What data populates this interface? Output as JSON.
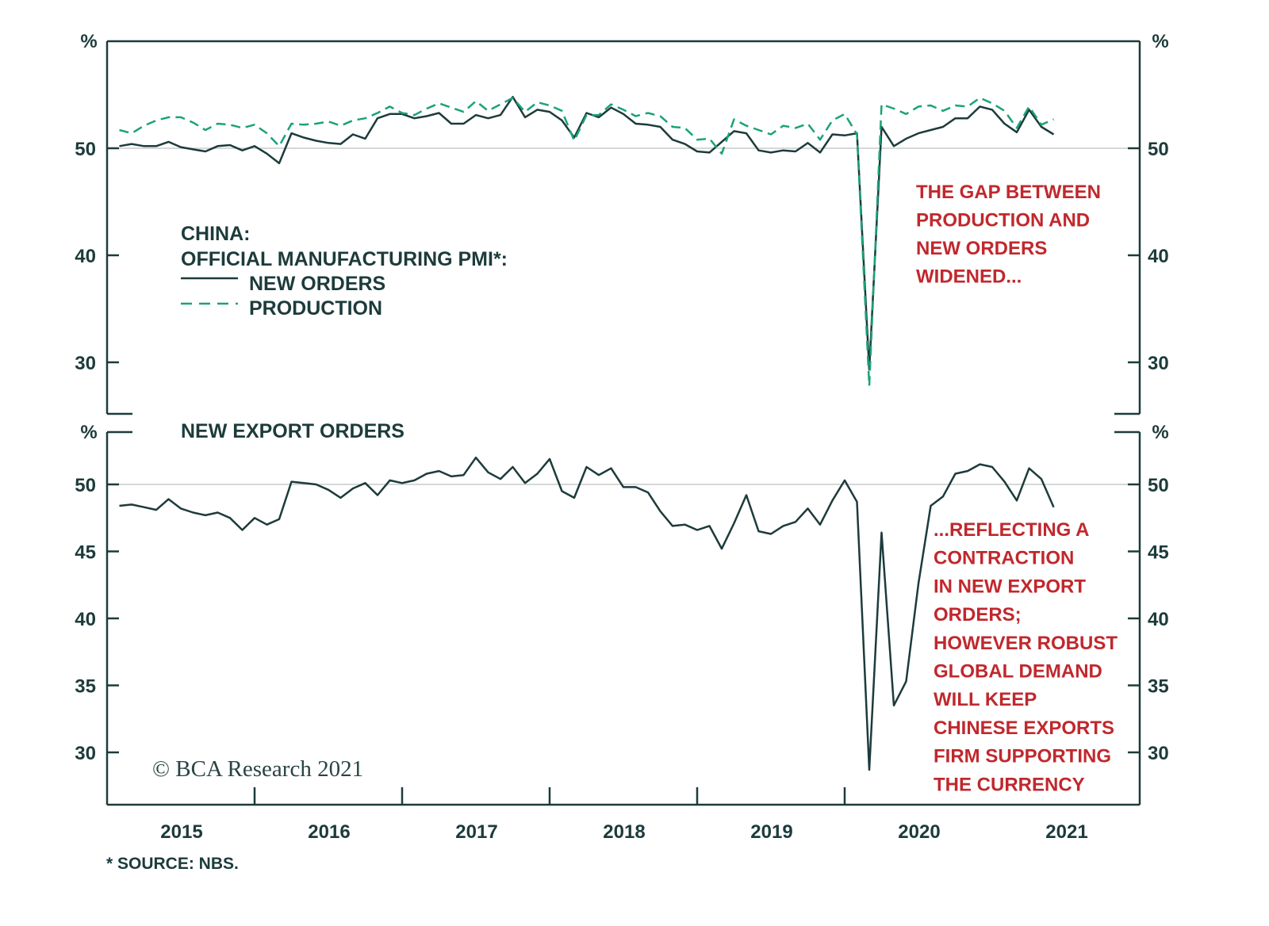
{
  "chart_data": [
    {
      "type": "line",
      "title": "CHINA:",
      "subtitle": "OFFICIAL MANUFACTURING PMI*:",
      "ylabel_left": "%",
      "ylabel_right": "%",
      "ylim": [
        25.2,
        60
      ],
      "yticks": [
        30,
        40,
        50
      ],
      "reference_line": 50,
      "legend_placement": "middle-left",
      "series": [
        {
          "name": "NEW ORDERS",
          "color": "#1d3b3b",
          "style": "solid",
          "values": [
            50.2,
            50.4,
            50.2,
            50.2,
            50.6,
            50.1,
            49.9,
            49.7,
            50.2,
            50.3,
            49.8,
            50.2,
            49.5,
            48.6,
            51.4,
            51.0,
            50.7,
            50.5,
            50.4,
            51.3,
            50.9,
            52.8,
            53.2,
            53.2,
            52.8,
            53.0,
            53.3,
            52.3,
            52.3,
            53.1,
            52.8,
            53.1,
            54.8,
            52.9,
            53.6,
            53.4,
            52.6,
            51.0,
            53.3,
            52.9,
            53.8,
            53.2,
            52.3,
            52.2,
            52.0,
            50.8,
            50.4,
            49.7,
            49.6,
            50.6,
            51.6,
            51.4,
            49.8,
            49.6,
            49.8,
            49.7,
            50.5,
            49.6,
            51.3,
            51.2,
            51.4,
            29.3,
            52.0,
            50.2,
            50.9,
            51.4,
            51.7,
            52.0,
            52.8,
            52.8,
            53.9,
            53.6,
            52.3,
            51.5,
            53.6,
            52.0,
            51.3
          ]
        },
        {
          "name": "PRODUCTION",
          "color": "#1aa37a",
          "style": "dashed",
          "values": [
            51.7,
            51.4,
            52.1,
            52.6,
            52.9,
            52.9,
            52.4,
            51.7,
            52.3,
            52.2,
            51.9,
            52.2,
            51.4,
            50.2,
            52.3,
            52.2,
            52.3,
            52.5,
            52.1,
            52.6,
            52.8,
            53.3,
            53.9,
            53.3,
            53.1,
            53.7,
            54.2,
            53.8,
            53.4,
            54.4,
            53.5,
            54.1,
            54.7,
            53.4,
            54.3,
            54.0,
            53.5,
            50.7,
            53.1,
            53.1,
            54.1,
            53.6,
            53.0,
            53.3,
            53.0,
            52.0,
            51.9,
            50.8,
            50.9,
            49.5,
            52.7,
            52.1,
            51.7,
            51.3,
            52.1,
            51.9,
            52.3,
            50.8,
            52.6,
            53.2,
            51.3,
            27.8,
            54.1,
            53.7,
            53.2,
            53.9,
            54.0,
            53.5,
            54.0,
            53.9,
            54.7,
            54.2,
            53.5,
            51.9,
            53.9,
            52.2,
            52.7
          ]
        }
      ],
      "annotation": [
        "THE GAP BETWEEN",
        "PRODUCTION AND",
        "NEW ORDERS",
        "WIDENED..."
      ],
      "annotation_color": "#c0282d"
    },
    {
      "type": "line",
      "title": "NEW EXPORT ORDERS",
      "ylabel_left": "%",
      "ylabel_right": "%",
      "ylim": [
        26.1,
        53.9
      ],
      "yticks": [
        30,
        35,
        40,
        45,
        50
      ],
      "reference_line": 50,
      "series": [
        {
          "color": "#1d3b3b",
          "style": "solid",
          "values": [
            48.4,
            48.5,
            48.3,
            48.1,
            48.9,
            48.2,
            47.9,
            47.7,
            47.9,
            47.5,
            46.6,
            47.5,
            47.0,
            47.4,
            50.2,
            50.1,
            50.0,
            49.6,
            49.0,
            49.7,
            50.1,
            49.2,
            50.3,
            50.1,
            50.3,
            50.8,
            51.0,
            50.6,
            50.7,
            52.0,
            50.9,
            50.4,
            51.3,
            50.1,
            50.8,
            51.9,
            49.5,
            49.0,
            51.3,
            50.7,
            51.2,
            49.8,
            49.8,
            49.4,
            48.0,
            46.9,
            47.0,
            46.6,
            46.9,
            45.2,
            47.1,
            49.2,
            46.5,
            46.3,
            46.9,
            47.2,
            48.2,
            47.0,
            48.8,
            50.3,
            48.7,
            28.7,
            46.4,
            33.5,
            35.3,
            42.6,
            48.4,
            49.1,
            50.8,
            51.0,
            51.5,
            51.3,
            50.2,
            48.8,
            51.2,
            50.4,
            48.3
          ]
        }
      ],
      "annotation": [
        "...REFLECTING A",
        "CONTRACTION",
        "IN NEW EXPORT",
        "ORDERS;",
        "HOWEVER ROBUST",
        "GLOBAL DEMAND",
        "WILL KEEP",
        "CHINESE EXPORTS",
        "FIRM SUPPORTING",
        "THE CURRENCY"
      ],
      "annotation_color": "#c0282d"
    }
  ],
  "x_axis": {
    "frequency": "monthly",
    "range": [
      "2015-01",
      "2021-05"
    ],
    "tick_labels": [
      "2015",
      "2016",
      "2017",
      "2018",
      "2019",
      "2020",
      "2021"
    ]
  },
  "footer": {
    "source": "* SOURCE: NBS.",
    "copyright": "© BCA Research 2021"
  }
}
